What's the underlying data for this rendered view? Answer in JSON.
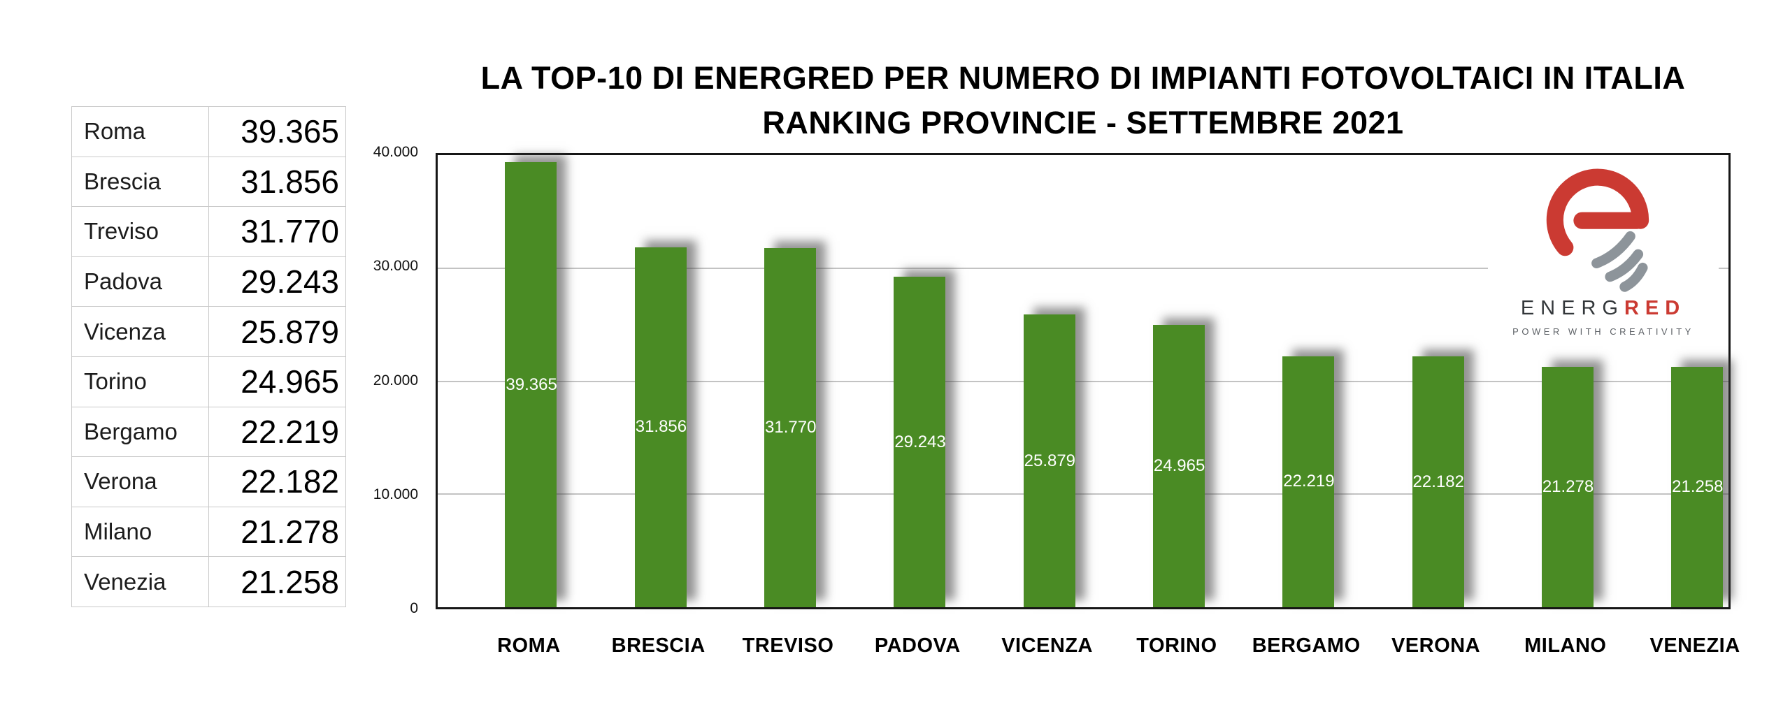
{
  "chart_data": {
    "type": "bar",
    "title": "LA TOP-10 DI ENERGRED PER NUMERO DI IMPIANTI FOTOVOLTAICI IN ITALIA",
    "subtitle": "RANKING PROVINCIE - SETTEMBRE 2021",
    "categories": [
      "ROMA",
      "BRESCIA",
      "TREVISO",
      "PADOVA",
      "VICENZA",
      "TORINO",
      "BERGAMO",
      "VERONA",
      "MILANO",
      "VENEZIA"
    ],
    "values": [
      39365,
      31856,
      31770,
      29243,
      25879,
      24965,
      22219,
      22182,
      21278,
      21258
    ],
    "bar_labels": [
      "39.365",
      "31.856",
      "31.770",
      "29.243",
      "25.879",
      "24.965",
      "22.219",
      "22.182",
      "21.278",
      "21.258"
    ],
    "xlabel": "",
    "ylabel": "",
    "ylim": [
      0,
      40000
    ],
    "y_ticks": [
      "0",
      "10.000",
      "20.000",
      "30.000",
      "40.000"
    ],
    "grid": true,
    "legend": false
  },
  "table": {
    "rows": [
      {
        "name": "Roma",
        "value": "39.365"
      },
      {
        "name": "Brescia",
        "value": "31.856"
      },
      {
        "name": "Treviso",
        "value": "31.770"
      },
      {
        "name": "Padova",
        "value": "29.243"
      },
      {
        "name": "Vicenza",
        "value": "25.879"
      },
      {
        "name": "Torino",
        "value": "24.965"
      },
      {
        "name": "Bergamo",
        "value": "22.219"
      },
      {
        "name": "Verona",
        "value": "22.182"
      },
      {
        "name": "Milano",
        "value": "21.278"
      },
      {
        "name": "Venezia",
        "value": "21.258"
      }
    ]
  },
  "logo": {
    "brand_prefix": "ENERG",
    "brand_suffix": "RED",
    "tagline": "POWER WITH CREATIVITY"
  },
  "colors": {
    "bar": "#4a8b24",
    "logo_red": "#cb3a32",
    "logo_gray": "#8d949a",
    "brand_dark": "#33373a",
    "tagline_gray": "#5d6166",
    "grid": "#c3c3c3",
    "table_border": "#c9c9c9"
  }
}
